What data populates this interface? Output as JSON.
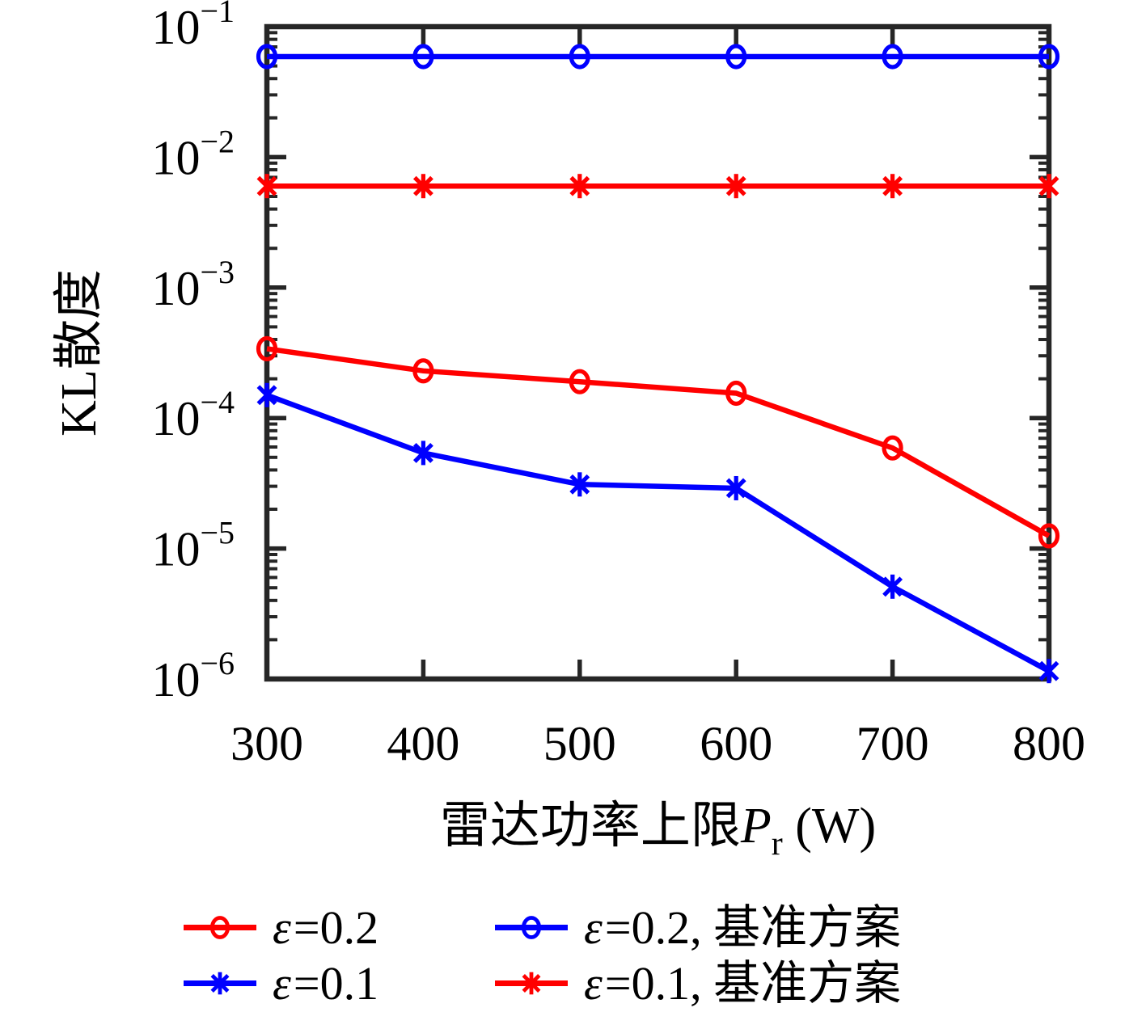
{
  "figure": {
    "background": "#ffffff",
    "axis_color": "#262626",
    "text_color": "#000000"
  },
  "chart_data": {
    "type": "line",
    "title": "",
    "xlabel": {
      "prefix": "雷达功率上限",
      "variable": "P",
      "subscript": "r",
      "suffix": " (W)"
    },
    "ylabel": "KL散度",
    "x": [
      300,
      400,
      500,
      600,
      700,
      800
    ],
    "x_tick_labels": [
      "300",
      "400",
      "500",
      "600",
      "700",
      "800"
    ],
    "xlim": [
      300,
      800
    ],
    "ylim_log10": [
      -6,
      -1
    ],
    "y_scale": "log",
    "grid": false,
    "legend_position": "below",
    "y_ticks": [
      {
        "mantissa": "10",
        "exponent": "−1",
        "value": 0.1
      },
      {
        "mantissa": "10",
        "exponent": "−2",
        "value": 0.01
      },
      {
        "mantissa": "10",
        "exponent": "−3",
        "value": 0.001
      },
      {
        "mantissa": "10",
        "exponent": "−4",
        "value": 0.0001
      },
      {
        "mantissa": "10",
        "exponent": "−5",
        "value": 1e-05
      },
      {
        "mantissa": "10",
        "exponent": "−6",
        "value": 1e-06
      }
    ],
    "series": [
      {
        "id": "eps02",
        "name": "ε=0.2",
        "label": {
          "eps": "ε",
          "rest": "=0.2"
        },
        "color": "#ff0000",
        "marker": "circle",
        "values": [
          0.00034,
          0.00023,
          0.00019,
          0.000155,
          5.9e-05,
          1.25e-05
        ]
      },
      {
        "id": "eps01",
        "name": "ε=0.1",
        "label": {
          "eps": "ε",
          "rest": "=0.1"
        },
        "color": "#0000ff",
        "marker": "asterisk",
        "values": [
          0.00015,
          5.4e-05,
          3.1e-05,
          2.9e-05,
          5.1e-06,
          1.15e-06
        ]
      },
      {
        "id": "eps02-baseline",
        "name": "ε=0.2, 基准方案",
        "label": {
          "eps": "ε",
          "rest": "=0.2, 基准方案"
        },
        "color": "#0000ff",
        "marker": "circle",
        "values": [
          0.059,
          0.059,
          0.059,
          0.059,
          0.059,
          0.059
        ]
      },
      {
        "id": "eps01-baseline",
        "name": "ε=0.1, 基准方案",
        "label": {
          "eps": "ε",
          "rest": "=0.1, 基准方案"
        },
        "color": "#ff0000",
        "marker": "asterisk",
        "values": [
          0.006,
          0.006,
          0.006,
          0.006,
          0.006,
          0.006
        ]
      }
    ]
  }
}
